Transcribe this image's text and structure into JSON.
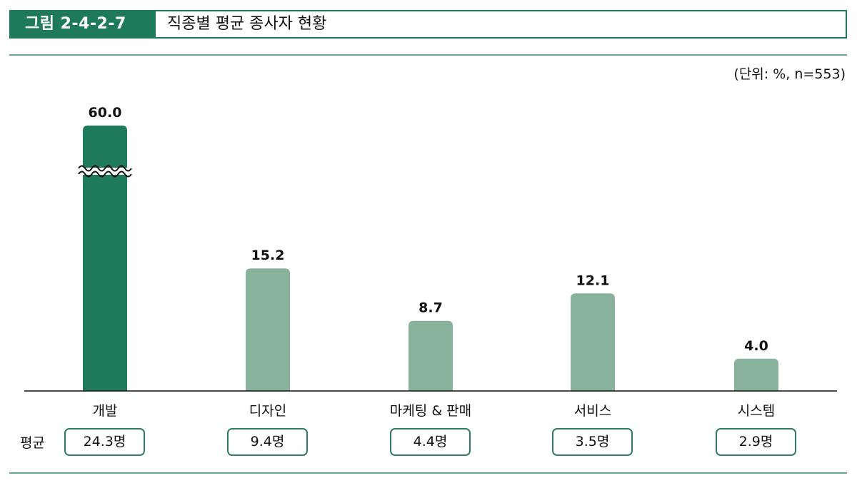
{
  "header": {
    "figure_tag": "그림 2-4-2-7",
    "title": "직종별 평균 종사자 현황"
  },
  "unit_note": "(단위: %, n=553)",
  "colors": {
    "accent": "#1f7a5c",
    "bar_highlight": "#1e7a5a",
    "bar_default": "#88b29b",
    "box_border": "#2e7d5e"
  },
  "average": {
    "label": "평균",
    "values": [
      "24.3명",
      "9.4명",
      "4.4명",
      "3.5명",
      "2.9명"
    ]
  },
  "chart_data": {
    "type": "bar",
    "categories": [
      "개발",
      "디자인",
      "마케팅 & 판매",
      "서비스",
      "시스템"
    ],
    "values": [
      60.0,
      15.2,
      8.7,
      12.1,
      4.0
    ],
    "value_labels": [
      "60.0",
      "15.2",
      "8.7",
      "12.1",
      "4.0"
    ],
    "axis_break_on_category": "개발",
    "highlight_category": "개발",
    "title": "직종별 평균 종사자 현황",
    "xlabel": "",
    "ylabel": "",
    "unit": "%",
    "grid": false
  }
}
